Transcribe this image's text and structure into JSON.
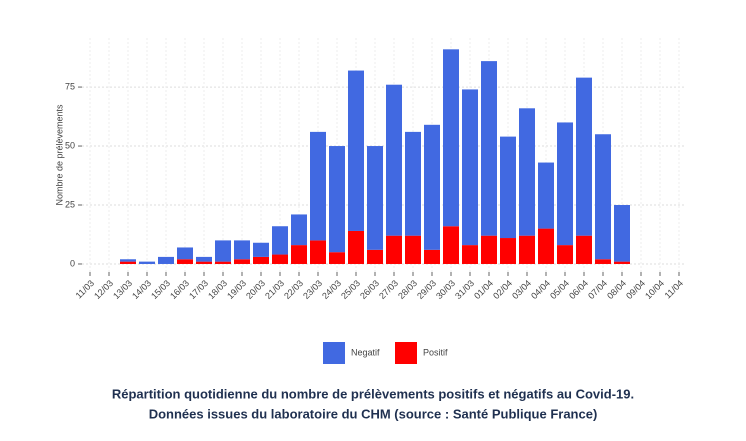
{
  "chart_data": {
    "type": "stacked_bar",
    "y_label": "Nombre de prélèvements",
    "categories": [
      "11/03",
      "12/03",
      "13/03",
      "14/03",
      "15/03",
      "16/03",
      "17/03",
      "18/03",
      "19/03",
      "20/03",
      "21/03",
      "22/03",
      "23/03",
      "24/03",
      "25/03",
      "26/03",
      "27/03",
      "28/03",
      "29/03",
      "30/03",
      "31/03",
      "01/04",
      "02/04",
      "03/04",
      "04/04",
      "05/04",
      "06/04",
      "07/04",
      "08/04",
      "09/04",
      "10/04",
      "11/04"
    ],
    "series": [
      {
        "name": "Negatif",
        "color": "#4169e1",
        "values": [
          null,
          null,
          1,
          1,
          3,
          5,
          2,
          9,
          8,
          6,
          12,
          13,
          46,
          45,
          68,
          44,
          64,
          44,
          53,
          75,
          66,
          74,
          43,
          54,
          28,
          52,
          67,
          53,
          24,
          null,
          null,
          null
        ]
      },
      {
        "name": "Positif",
        "color": "#ff0000",
        "values": [
          null,
          null,
          1,
          0,
          0,
          2,
          1,
          1,
          2,
          3,
          4,
          8,
          10,
          5,
          14,
          6,
          12,
          12,
          6,
          16,
          8,
          12,
          11,
          12,
          15,
          8,
          12,
          2,
          1,
          null,
          null,
          null
        ]
      }
    ],
    "ylim": [
      -3.4,
      95.8
    ],
    "yticks": [
      0,
      25,
      50,
      75
    ],
    "grid": true,
    "caption": [
      "Répartition quotidienne du nombre de prélèvements positifs et négatifs au Covid-19.",
      "Données issues du laboratoire du CHM (source : Santé Publique France)"
    ]
  }
}
